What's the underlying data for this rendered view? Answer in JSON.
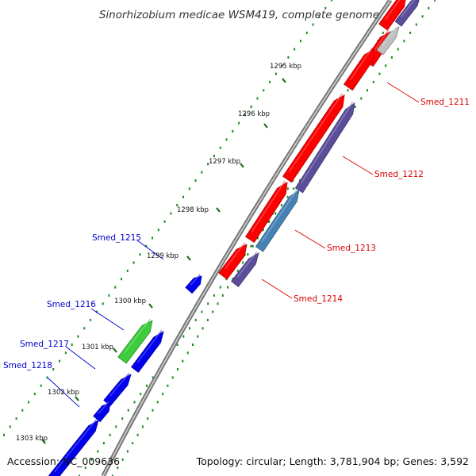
{
  "title": "Sinorhizobium medicae WSM419, complete genome",
  "accession": "Accession: NC_009636",
  "summary": "Topology: circular; Length: 3,781,904 bp; Genes: 3,592",
  "colors": {
    "forward_cds": "#ff0000",
    "reverse_cds": "#0000ee",
    "cog_purple": "#5b4d9a",
    "cog_steelblue": "#4682b4",
    "green_gene": "#3ccc3c",
    "grey_feature": "#c0c0c0",
    "tick_dots": "#1a8a1a",
    "backbone": "#888888",
    "forward_label": "#dd0000",
    "reverse_label": "#0000cc"
  },
  "kbp_labels": [
    "1295 kbp",
    "1296 kbp",
    "1297 kbp",
    "1298 kbp",
    "1299 kbp",
    "1300 kbp",
    "1301 kbp",
    "1302 kbp",
    "1303 kbp"
  ],
  "forward_genes": [
    "Smed_1211",
    "Smed_1212",
    "Smed_1213",
    "Smed_1214"
  ],
  "reverse_genes": [
    "Smed_1215",
    "Smed_1216",
    "Smed_1217",
    "Smed_1218"
  ]
}
